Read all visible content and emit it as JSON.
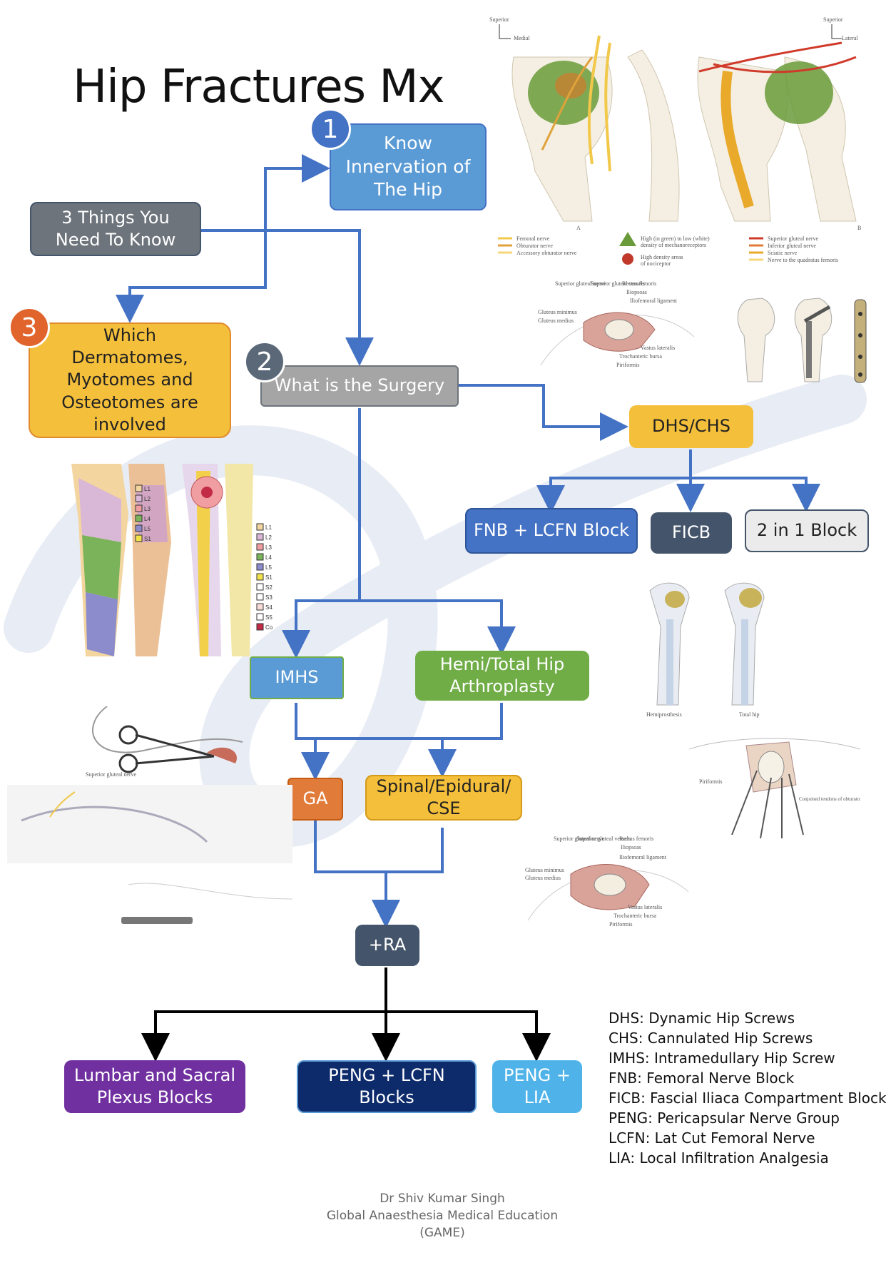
{
  "title": "Hip Fractures Mx",
  "nodes": {
    "three_things": "3 Things You\nNeed To Know",
    "know_innervation": "Know\nInnervation of\nThe Hip",
    "which_dermatomes": "Which\nDermatomes,\nMyotomes and\nOsteotomes are\ninvolved",
    "what_surgery": "What is the Surgery",
    "dhs_chs": "DHS/CHS",
    "fnb_lcfn": "FNB + LCFN Block",
    "ficb": "FICB",
    "two_in_one": "2 in 1 Block",
    "imhs": "IMHS",
    "hemi_total": "Hemi/Total Hip\nArthroplasty",
    "ga": "GA",
    "spinal": "Spinal/Epidural/\nCSE",
    "ra": "+RA",
    "lumbar_sacral": "Lumbar and Sacral\nPlexus Blocks",
    "peng_lcfn": "PENG + LCFN\nBlocks",
    "peng_lia": "PENG +\nLIA"
  },
  "badges": {
    "one": "1",
    "two": "2",
    "three": "3"
  },
  "abbreviations": [
    "DHS: Dynamic Hip Screws",
    "CHS: Cannulated Hip Screws",
    "IMHS: Intramedullary Hip Screw",
    "FNB: Femoral Nerve Block",
    "FICB: Fascial Iliaca Compartment Block",
    "PENG: Pericapsular Nerve Group",
    "LCFN: Lat Cut Femoral Nerve",
    "LIA: Local Infiltration Analgesia"
  ],
  "footer": {
    "author": "Dr Shiv Kumar Singh",
    "org": "Global Anaesthesia Medical Education",
    "abbr": "(GAME)"
  },
  "innervation_figure": {
    "left_axis": {
      "top": "Superior",
      "side": "Medial"
    },
    "right_axis": {
      "top": "Superior",
      "side": "Lateral"
    },
    "panel_a": "A",
    "panel_b": "B",
    "legend_left": [
      "Femoral nerve",
      "Obturator nerve",
      "Accessory obturator nerve"
    ],
    "legend_mid": [
      "High (in green) to low (white)",
      "density of mechanoreceptors",
      "High density areas",
      "of nociceptor"
    ],
    "legend_right": [
      "Superior gluteal nerve",
      "Inferior gluteal nerve",
      "Sciatic nerve",
      "Nerve to the quadratus femoris"
    ]
  },
  "dermatome_legend_left": [
    "L1",
    "L2",
    "L3",
    "L4",
    "L5",
    "S1"
  ],
  "dermatome_legend_right": [
    "L1",
    "L2",
    "L3",
    "L4",
    "L5",
    "S1",
    "S2",
    "S3",
    "S4",
    "S5",
    "Co"
  ],
  "surgical_labels_top": [
    "Superior gluteal nerve",
    "Superior gluteal vessels",
    "Rectus femoris",
    "Iliopsoas",
    "Iliofemoral ligament",
    "Gluteus minimus",
    "Gluteus medius",
    "Vastus lateralis",
    "Trochanteric bursa",
    "Piriformis"
  ],
  "surgical_labels_bottom": [
    "Superior gluteal nerve",
    "Superior gluteal vessels",
    "Rectus femoris",
    "Iliopsoas",
    "Iliofemoral ligament",
    "Gluteus minimus",
    "Gluteus medius",
    "Vastus lateralis",
    "Trochanteric bursa",
    "Piriformis"
  ],
  "arthroplasty_labels": [
    "Hemiprosthesis",
    "Total hip"
  ],
  "posterior_labels": [
    "Piriformis",
    "Conjoined tendons of obturator internus and gemelli muscles"
  ],
  "left_figure_label": "Superior gluteal nerve",
  "colors": {
    "blue_box": "#5b9bd5",
    "dark_blue": "#4472c4",
    "gray_box": "#6d747c",
    "gray_light": "#a5a5a5",
    "orange_box": "#f4bf3a",
    "green_box": "#70ad47",
    "ga_orange": "#e07b39",
    "navy_box": "#44546a",
    "purple": "#7030a0",
    "deep_navy": "#0d2a6b",
    "sky": "#4fb3ea",
    "arrow_blue": "#4472c4",
    "badge_blue": "#4472c4",
    "badge_gray": "#5a6878",
    "badge_orange": "#e0642c"
  }
}
